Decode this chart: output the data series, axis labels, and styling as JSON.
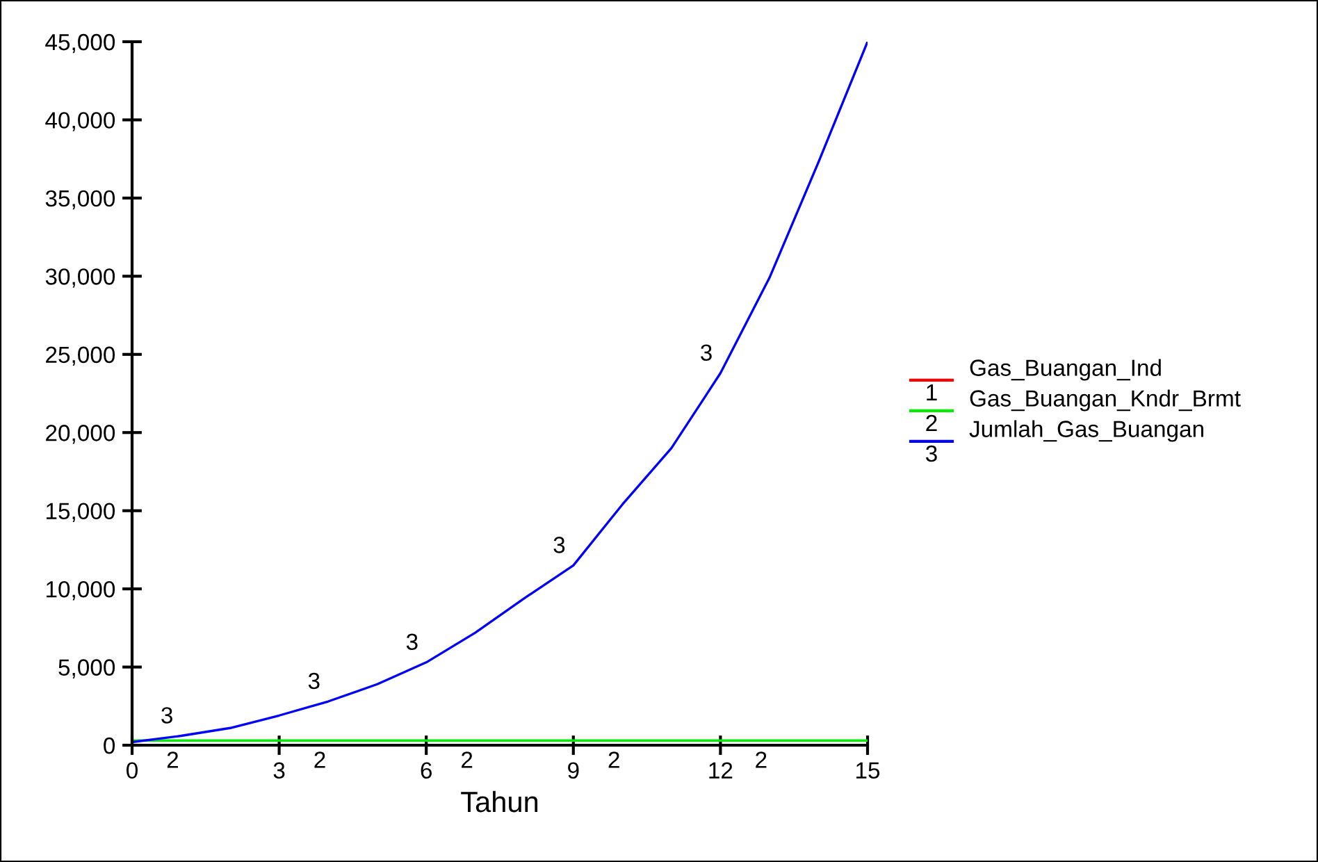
{
  "chart_data": {
    "type": "line",
    "xlabel": "Tahun",
    "x": [
      0,
      1,
      2,
      3,
      4,
      5,
      6,
      7,
      8,
      9,
      10,
      11,
      12,
      13,
      14,
      15
    ],
    "series": [
      {
        "name": "Gas_Buangan_Ind",
        "color": "#ff0000",
        "values": [
          null,
          null,
          null,
          null,
          null,
          null,
          null,
          null,
          null,
          null,
          null,
          null,
          null,
          null,
          null,
          null
        ]
      },
      {
        "name": "Gas_Buangan_Kndr_Brmt",
        "color": "#00ee00",
        "values": [
          300,
          300,
          300,
          300,
          300,
          300,
          300,
          300,
          300,
          300,
          300,
          300,
          300,
          300,
          300,
          300
        ]
      },
      {
        "name": "Jumlah_Gas_Buangan",
        "color": "#0000ff",
        "values": [
          200,
          600,
          1100,
          1900,
          2800,
          3900,
          5300,
          7200,
          9400,
          11500,
          15400,
          19000,
          23800,
          29900,
          37300,
          45000
        ]
      }
    ],
    "xlim": [
      0,
      15
    ],
    "xticks": [
      0,
      3,
      6,
      9,
      12,
      15
    ],
    "ylim": [
      0,
      45000
    ],
    "yticks": [
      0,
      {
        "value": 5000,
        "label": "5,000"
      },
      {
        "value": 10000,
        "label": "10,000"
      },
      {
        "value": 15000,
        "label": "15,000"
      },
      {
        "value": 20000,
        "label": "20,000"
      },
      {
        "value": 25000,
        "label": "25,000"
      },
      {
        "value": 30000,
        "label": "30,000"
      },
      {
        "value": 35000,
        "label": "35,000"
      },
      {
        "value": 40000,
        "label": "40,000"
      },
      {
        "value": 45000,
        "label": "45,000"
      }
    ],
    "annotations": [
      {
        "text": "2",
        "x": 0.5,
        "y": 0
      },
      {
        "text": "2",
        "x": 3.5,
        "y": 0
      },
      {
        "text": "2",
        "x": 6.5,
        "y": 0
      },
      {
        "text": "2",
        "x": 9.5,
        "y": 0
      },
      {
        "text": "2",
        "x": 12.5,
        "y": 0
      },
      {
        "text": "3",
        "x": 1,
        "y": 600
      },
      {
        "text": "3",
        "x": 4,
        "y": 2800
      },
      {
        "text": "3",
        "x": 6,
        "y": 5300
      },
      {
        "text": "3",
        "x": 9,
        "y": 11500
      },
      {
        "text": "3",
        "x": 12,
        "y": 23800
      },
      "1",
      "2",
      "3"
    ],
    "grid": false,
    "legend": "right",
    "marker": "none",
    "line_style": "solid"
  }
}
